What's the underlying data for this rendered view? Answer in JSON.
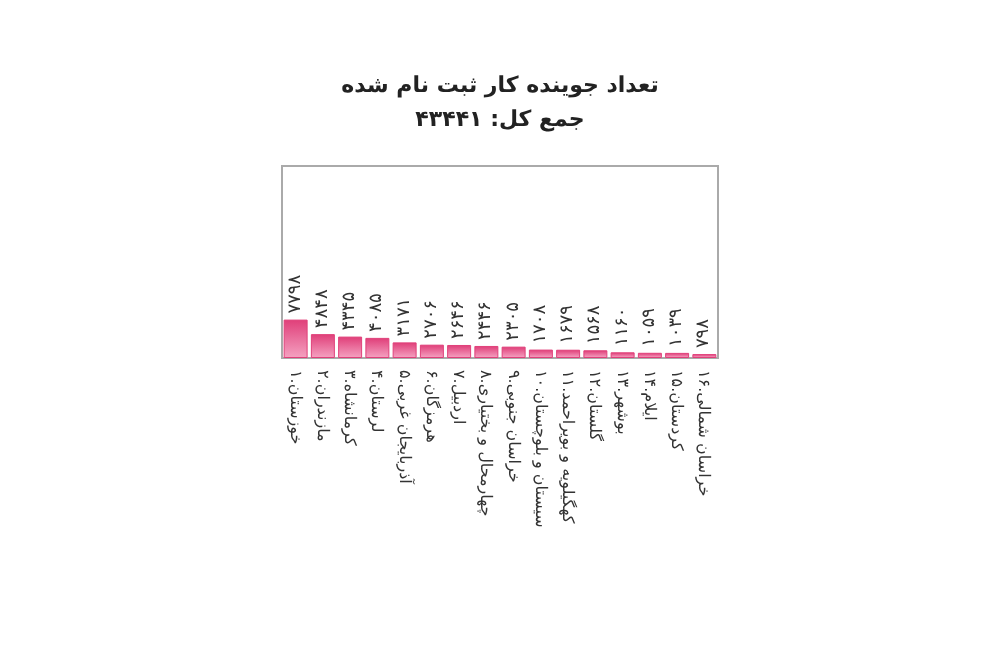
{
  "chart_data": {
    "type": "bar",
    "title": "تعداد جوینده کار ثبت نام شده",
    "subtitle": "جمع کل: ۴۳۴۴۱",
    "categories": [
      "۱.خوزستان",
      "۲.مازندران",
      "۳.کرمانشاه",
      "۴.لرستان",
      "۵.آذربایجان غربی",
      "۶.هرمزگان",
      "۷.اردبیل",
      "۸.چهارمحال و بختیاری",
      "۹.خراسان جنوبی",
      "۱۰.سیستان و بلوچستان",
      "۱۱.کهگیلویه و بویراحمد",
      "۱۲.گلستان",
      "۱۳.بوشهر",
      "۱۴.ایلام",
      "۱۵.کردستان",
      "۱۶.خراسان شمالی"
    ],
    "values": [
      7798,
      4848,
      4345,
      4085,
      3171,
      2706,
      2646,
      2446,
      2305,
      1708,
      1679,
      1568,
      1160,
      1059,
      1039,
      798
    ],
    "value_labels": [
      "۷۷۹۸",
      "۴۸۴۸",
      "۴۳۴۵",
      "۴۰۸۵",
      "۳۱۷۱",
      "۲۷۰۶",
      "۲۶۴۶",
      "۲۴۴۶",
      "۲۳۰۵",
      "۱۷۰۸",
      "۱۶۷۹",
      "۱۵۶۸",
      "۱۱۶۰",
      "۱۰۵۹",
      "۱۰۳۹",
      "۷۹۸"
    ],
    "color": "#e0407a",
    "grid": false
  }
}
